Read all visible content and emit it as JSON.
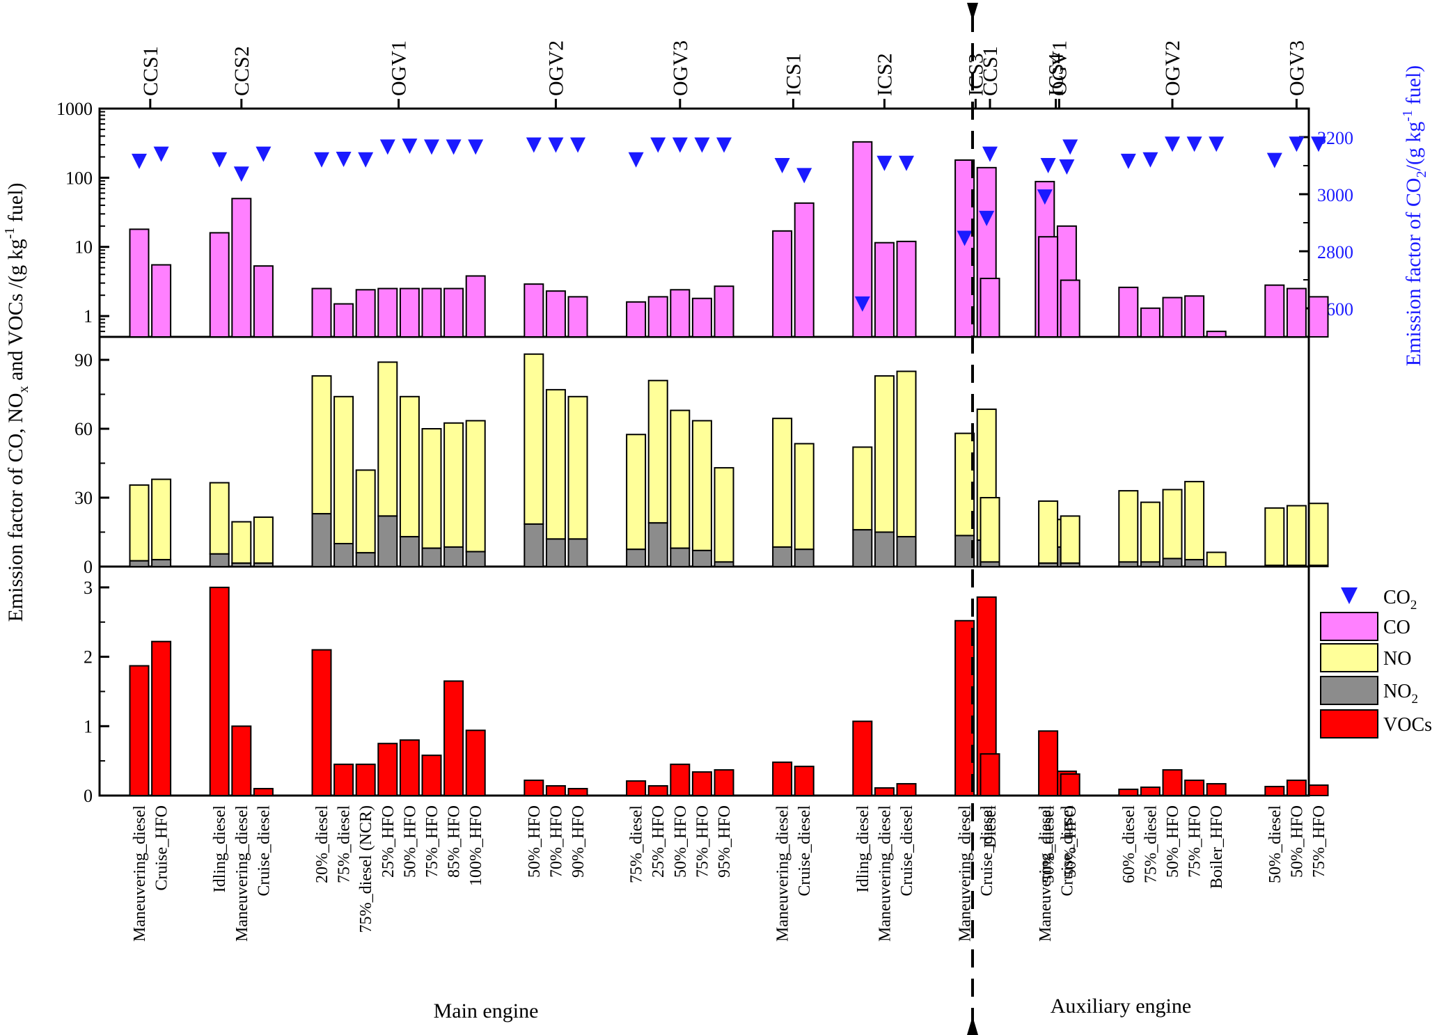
{
  "chart_data": {
    "type": "bar",
    "y_axis_left_label": "Emission factor of CO, NO",
    "y_axis_left_label_sub": "x",
    "y_axis_left_label_tail": " and VOCs /(g kg",
    "y_axis_left_label_sup": "-1",
    "y_axis_left_label_end": " fuel)",
    "y_axis_right_label": "Emission factor of CO",
    "y_axis_right_label_sub": "2",
    "y_axis_right_label_tail": "/(g kg",
    "y_axis_right_label_sup": "-1",
    "y_axis_right_label_end": " fuel)",
    "section_labels": {
      "main": "Main engine",
      "auxiliary": "Auxiliary engine"
    },
    "panels": {
      "top": {
        "scale": "log",
        "ylim": [
          0.5,
          1000
        ],
        "yticks": [
          1,
          10,
          100,
          1000
        ],
        "right_ylim": [
          2500,
          3300
        ],
        "right_yticks": [
          2600,
          2800,
          3000,
          3200
        ]
      },
      "middle": {
        "scale": "linear",
        "ylim": [
          0,
          100
        ],
        "yticks": [
          0,
          30,
          60,
          90
        ]
      },
      "bottom": {
        "scale": "linear",
        "ylim": [
          0,
          3.3
        ],
        "yticks": [
          0,
          1,
          2,
          3
        ]
      }
    },
    "legend": [
      {
        "key": "co2",
        "label": "CO",
        "sub": "2",
        "marker": "triangle-down",
        "color": "#1a1aff"
      },
      {
        "key": "co",
        "label": "CO",
        "sub": "",
        "marker": "box",
        "color": "#ff80ff"
      },
      {
        "key": "no",
        "label": "NO",
        "sub": "",
        "marker": "box",
        "color": "#ffff99"
      },
      {
        "key": "no2",
        "label": "NO",
        "sub": "2",
        "marker": "box",
        "color": "#8c8c8c"
      },
      {
        "key": "vocs",
        "label": "VOCs",
        "sub": "",
        "marker": "box",
        "color": "#ff0000"
      }
    ],
    "groups": [
      {
        "name": "CCS1",
        "section": "main",
        "bars": [
          {
            "label": "Maneuvering_diesel",
            "co": 18,
            "no": 33,
            "no2": 2.5,
            "vocs": 1.87,
            "co2": 3115
          },
          {
            "label": "Cruise_HFO",
            "co": 5.5,
            "no": 35,
            "no2": 3,
            "vocs": 2.22,
            "co2": 3140
          }
        ]
      },
      {
        "name": "CCS2",
        "section": "main",
        "bars": [
          {
            "label": "Idling_diesel",
            "co": 16,
            "no": 31,
            "no2": 5.5,
            "vocs": 3.0,
            "co2": 3120
          },
          {
            "label": "Maneuvering_diesel",
            "co": 50,
            "no": 18,
            "no2": 1.5,
            "vocs": 1.0,
            "co2": 3070
          },
          {
            "label": "Cruise_diesel",
            "co": 5.3,
            "no": 20,
            "no2": 1.5,
            "vocs": 0.1,
            "co2": 3140
          }
        ]
      },
      {
        "name": "OGV1",
        "section": "main",
        "bars": [
          {
            "label": "20%_diesel",
            "co": 2.5,
            "no": 60,
            "no2": 23,
            "vocs": 2.1,
            "co2": 3120
          },
          {
            "label": "75%_diesel",
            "co": 1.5,
            "no": 64,
            "no2": 10,
            "vocs": 0.45,
            "co2": 3122
          },
          {
            "label": "75%_diesel (NCR)",
            "co": 2.4,
            "no": 36,
            "no2": 6,
            "vocs": 0.45,
            "co2": 3120
          },
          {
            "label": "25%_HFO",
            "co": 2.5,
            "no": 67,
            "no2": 22,
            "vocs": 0.75,
            "co2": 3165
          },
          {
            "label": "50%_HFO",
            "co": 2.5,
            "no": 61,
            "no2": 13,
            "vocs": 0.8,
            "co2": 3168
          },
          {
            "label": "75%_HFO",
            "co": 2.5,
            "no": 52,
            "no2": 8,
            "vocs": 0.58,
            "co2": 3165
          },
          {
            "label": "85%_HFO",
            "co": 2.5,
            "no": 54,
            "no2": 8.5,
            "vocs": 1.65,
            "co2": 3165
          },
          {
            "label": "100%_HFO",
            "co": 3.8,
            "no": 57,
            "no2": 6.5,
            "vocs": 0.94,
            "co2": 3165
          }
        ]
      },
      {
        "name": "OGV2",
        "section": "main",
        "bars": [
          {
            "label": "50%_HFO",
            "co": 2.9,
            "no": 74,
            "no2": 18.5,
            "vocs": 0.22,
            "co2": 3172
          },
          {
            "label": "70%_HFO",
            "co": 2.3,
            "no": 65,
            "no2": 12,
            "vocs": 0.14,
            "co2": 3172
          },
          {
            "label": "90%_HFO",
            "co": 1.9,
            "no": 62,
            "no2": 12,
            "vocs": 0.1,
            "co2": 3172
          }
        ]
      },
      {
        "name": "OGV3",
        "section": "main",
        "bars": [
          {
            "label": "75%_diesel",
            "co": 1.6,
            "no": 50,
            "no2": 7.5,
            "vocs": 0.21,
            "co2": 3120
          },
          {
            "label": "25%_HFO",
            "co": 1.9,
            "no": 62,
            "no2": 19,
            "vocs": 0.14,
            "co2": 3172
          },
          {
            "label": "50%_HFO",
            "co": 2.4,
            "no": 60,
            "no2": 8,
            "vocs": 0.45,
            "co2": 3172
          },
          {
            "label": "75%_HFO",
            "co": 1.8,
            "no": 56.5,
            "no2": 7,
            "vocs": 0.34,
            "co2": 3172
          },
          {
            "label": "95%_HFO",
            "co": 2.7,
            "no": 41,
            "no2": 2,
            "vocs": 0.37,
            "co2": 3172
          }
        ]
      },
      {
        "name": "ICS1",
        "section": "main",
        "bars": [
          {
            "label": "Maneuvering_diesel",
            "co": 17,
            "no": 56,
            "no2": 8.5,
            "vocs": 0.48,
            "co2": 3100
          },
          {
            "label": "Cruise_diesel",
            "co": 43,
            "no": 46,
            "no2": 7.5,
            "vocs": 0.42,
            "co2": 3065
          }
        ]
      },
      {
        "name": "ICS2",
        "section": "main",
        "bars": [
          {
            "label": "Idling_diesel",
            "co": 330,
            "no": 36,
            "no2": 16,
            "vocs": 1.07,
            "co2": 2615
          },
          {
            "label": "Maneuvering_diesel",
            "co": 11.5,
            "no": 68,
            "no2": 15,
            "vocs": 0.11,
            "co2": 3108
          },
          {
            "label": "Cruise_diesel",
            "co": 12,
            "no": 72,
            "no2": 13,
            "vocs": 0.17,
            "co2": 3108
          }
        ]
      },
      {
        "name": "ICS3",
        "section": "main",
        "bars": [
          {
            "label": "Maneuvering_diesel",
            "co": 180,
            "no": 44.5,
            "no2": 13.5,
            "vocs": 2.52,
            "co2": 2845
          },
          {
            "label": "Cruise_diesel",
            "co": 140,
            "no": 57,
            "no2": 11.5,
            "vocs": 2.86,
            "co2": 2915
          }
        ]
      },
      {
        "name": "ICS4",
        "section": "main",
        "bars": [
          {
            "label": "Maneuvering_diesel",
            "co": 88,
            "no": null,
            "no2": null,
            "vocs": null,
            "co2": 2990
          },
          {
            "label": "Cruise_diesel",
            "co": 20,
            "no": 12,
            "no2": 8.5,
            "vocs": 0.35,
            "co2": 3095
          }
        ]
      },
      {
        "name": "CCS1",
        "section": "auxiliary",
        "bars": [
          {
            "label": "Diesel",
            "co": 3.5,
            "no": 28,
            "no2": 2,
            "vocs": 0.6,
            "co2": 3140
          }
        ]
      },
      {
        "name": "OGV1",
        "section": "auxiliary",
        "bars": [
          {
            "label": "50%_diesel",
            "co": 14,
            "no": 27,
            "no2": 1.5,
            "vocs": 0.93,
            "co2": 3100
          },
          {
            "label": "50%_HFO",
            "co": 3.3,
            "no": 20.5,
            "no2": 1.5,
            "vocs": 0.31,
            "co2": 3165
          }
        ]
      },
      {
        "name": "OGV2",
        "section": "auxiliary",
        "bars": [
          {
            "label": "60%_diesel",
            "co": 2.6,
            "no": 31,
            "no2": 2,
            "vocs": 0.09,
            "co2": 3115
          },
          {
            "label": "75%_diesel",
            "co": 1.3,
            "no": 26,
            "no2": 2,
            "vocs": 0.12,
            "co2": 3120
          },
          {
            "label": "50%_HFO",
            "co": 1.85,
            "no": 30,
            "no2": 3.5,
            "vocs": 0.37,
            "co2": 3175
          },
          {
            "label": "75%_HFO",
            "co": 1.95,
            "no": 34,
            "no2": 3,
            "vocs": 0.22,
            "co2": 3175
          },
          {
            "label": "Boiler_HFO",
            "co": 0.6,
            "no": 6.2,
            "no2": 0,
            "vocs": 0.17,
            "co2": 3175
          }
        ]
      },
      {
        "name": "OGV3",
        "section": "auxiliary",
        "bars": [
          {
            "label": "50%_diesel",
            "co": 2.8,
            "no": 25,
            "no2": 0.5,
            "vocs": 0.13,
            "co2": 3118
          },
          {
            "label": "50%_HFO",
            "co": 2.5,
            "no": 26,
            "no2": 0.5,
            "vocs": 0.22,
            "co2": 3175
          },
          {
            "label": "75%_HFO",
            "co": 1.9,
            "no": 27,
            "no2": 0.5,
            "vocs": 0.15,
            "co2": 3175
          }
        ]
      }
    ]
  }
}
